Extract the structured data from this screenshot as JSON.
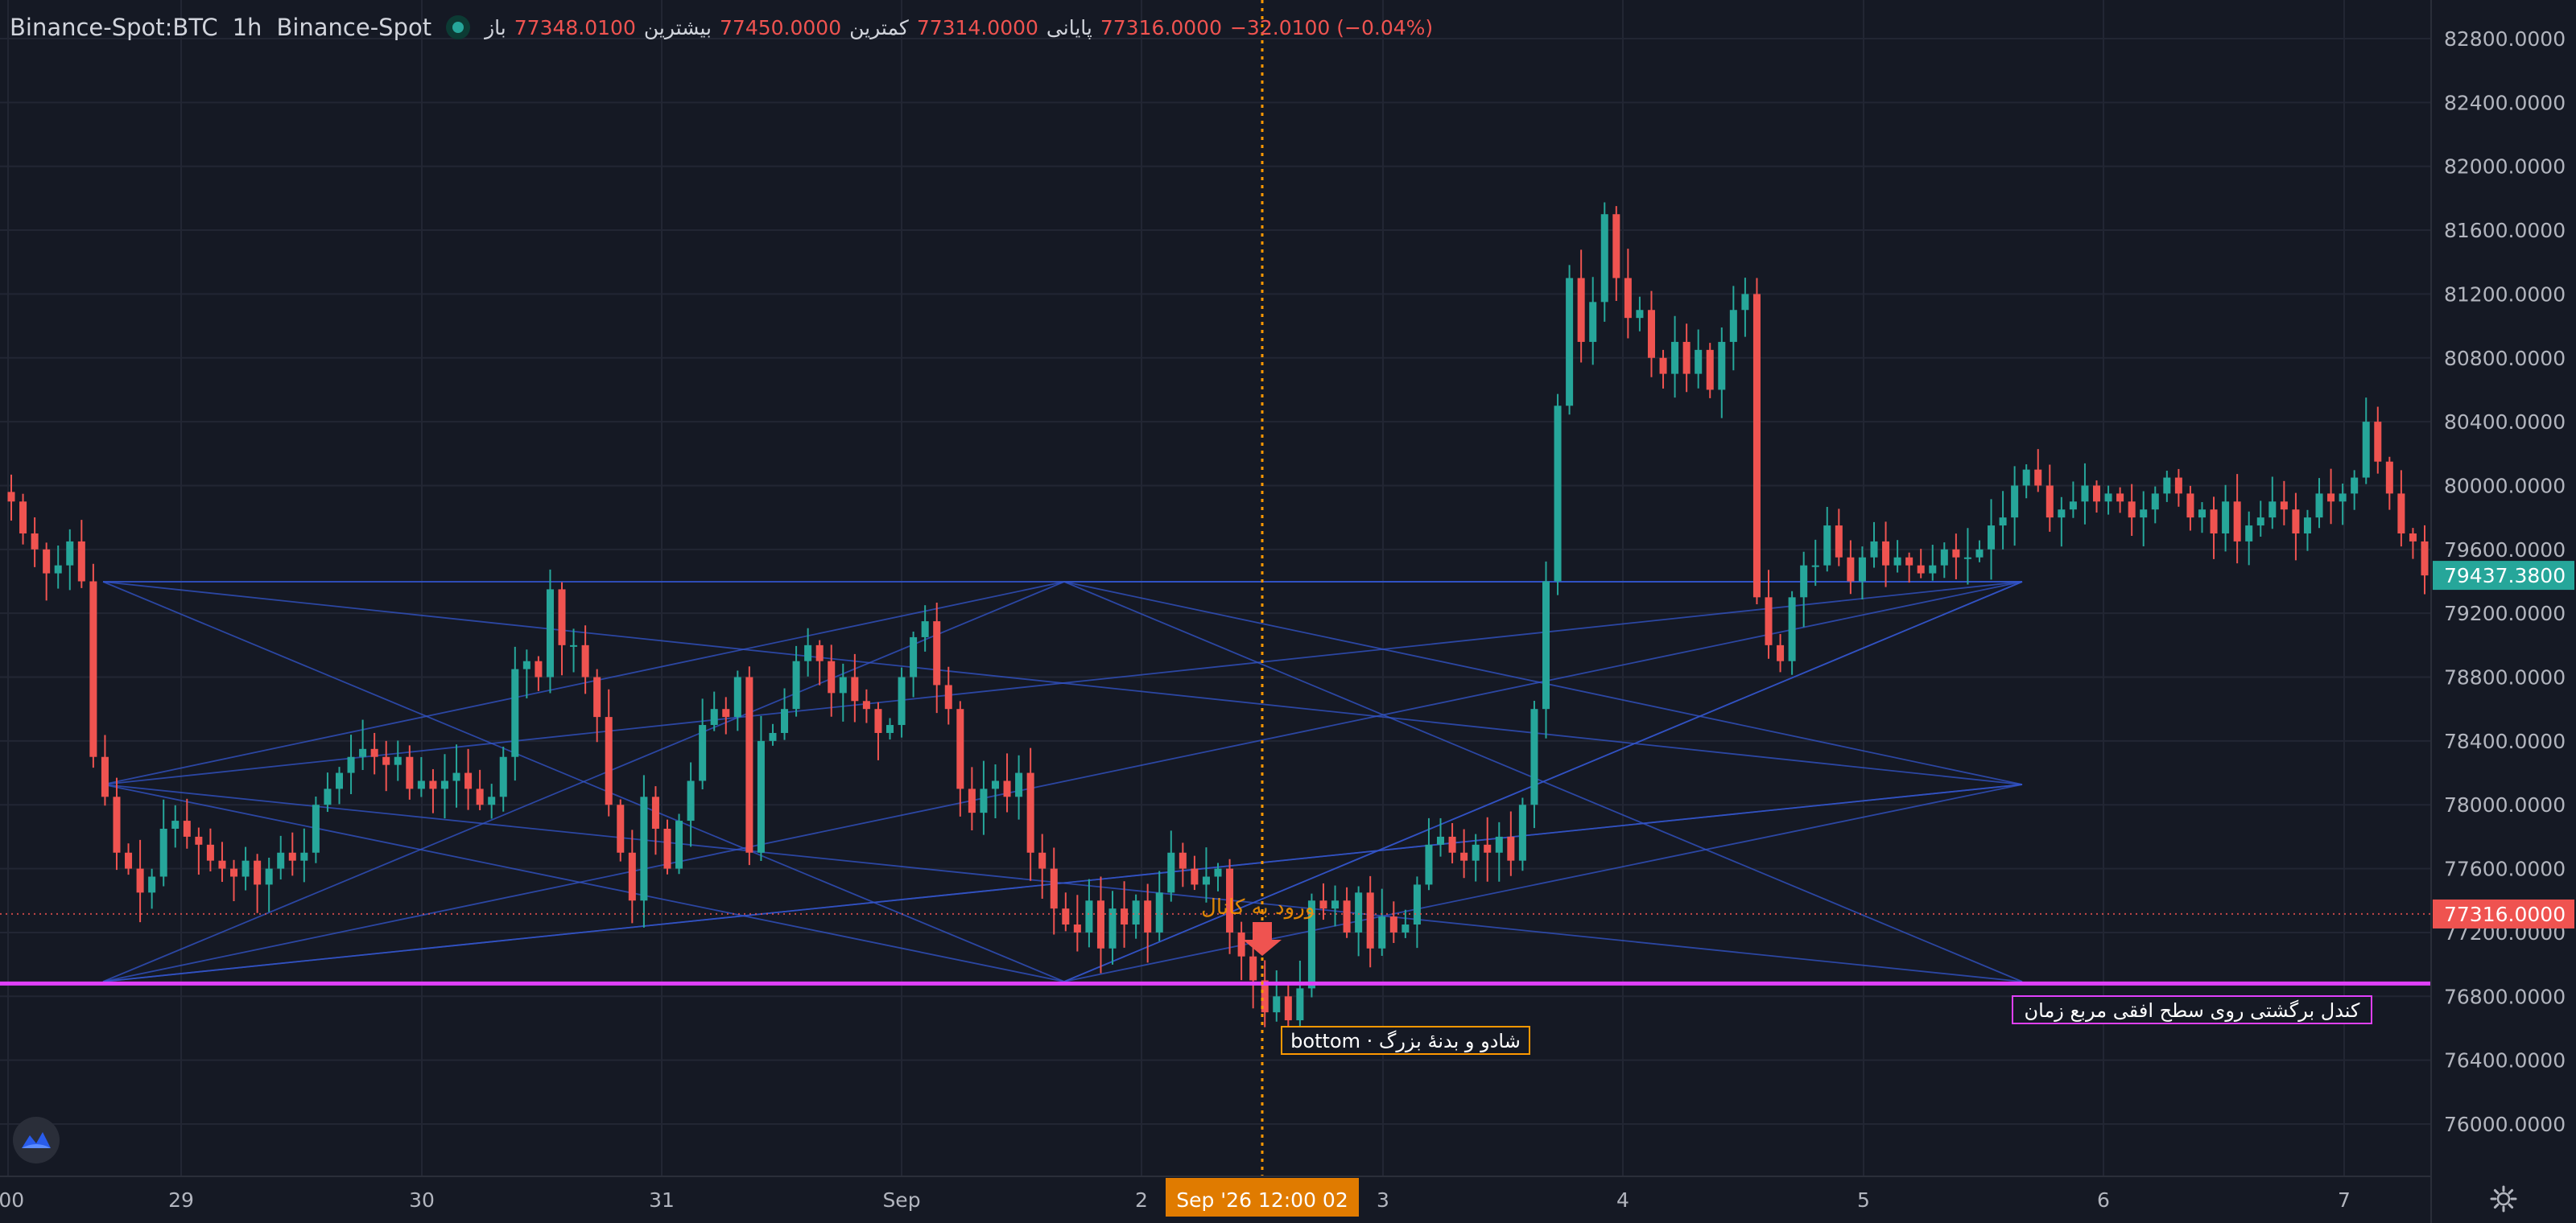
{
  "header": {
    "symbol": "Binance-Spot:BTC",
    "interval": "1h",
    "exchange": "Binance-Spot",
    "status_icon": "market-open-dot-icon",
    "open_label": "باز",
    "open_value": "77348.0100",
    "high_label": "بیشترین",
    "high_value": "77450.0000",
    "low_label": "کمترین",
    "low_value": "77314.0000",
    "close_label": "پایانی",
    "close_value": "77316.0000",
    "change_value": "−32.0100 (−0.04%)"
  },
  "colors": {
    "background": "#151924",
    "up": "#26a69a",
    "down": "#ef5350",
    "grid": "#222633",
    "pattern_lines": "#3355cc",
    "support_line": "#e040fb",
    "crosshair": "#ff9800"
  },
  "price_axis": {
    "ticks": [
      "82800.0000",
      "82400.0000",
      "82000.0000",
      "81600.0000",
      "81200.0000",
      "80800.0000",
      "80400.0000",
      "80000.0000",
      "79600.0000",
      "79200.0000",
      "78800.0000",
      "78400.0000",
      "78000.0000",
      "77600.0000",
      "77200.0000",
      "76800.0000",
      "76400.0000",
      "76000.0000"
    ],
    "last_price_label": "79437.3800",
    "crosshair_price_label": "77316.0000"
  },
  "time_axis": {
    "ticks": [
      ":00",
      "29",
      "30",
      "31",
      "Sep",
      "2",
      "3",
      "4",
      "5",
      "6",
      "7"
    ],
    "crosshair_time_label": "Sep '26   12:00 02"
  },
  "annotations": {
    "support_label": "کندل برگشتی روی سطح افقی مربع زمان",
    "bottom_label": "bottom · شادو و بدنهٔ بزرگ",
    "signal_label": "ورود به کانال"
  },
  "chart_data": {
    "type": "candlestick",
    "ylim": [
      75600,
      83000
    ],
    "support_level": 76880,
    "crosshair_price": 77316,
    "last_price": 79437.38,
    "series": [
      {
        "name": "BTC",
        "values": [
          79900,
          79700,
          79600,
          79450,
          79500,
          79650,
          79400,
          78300,
          78050,
          77700,
          77600,
          77450,
          77550,
          77850,
          77900,
          77800,
          77750,
          77650,
          77600,
          77550,
          77650,
          77500,
          77600,
          77700,
          77650,
          77700,
          78000,
          78100,
          78200,
          78300,
          78350,
          78300,
          78250,
          78300,
          78100,
          78150,
          78100,
          78150,
          78200,
          78100,
          78000,
          78050,
          78300,
          78850,
          78900,
          78800,
          79350,
          79000,
          79000,
          78800,
          78550,
          78000,
          77700,
          77400,
          78050,
          77850,
          77600,
          77900,
          78150,
          78500,
          78600,
          78550,
          78800,
          77700,
          78400,
          78450,
          78600,
          78900,
          79000,
          78900,
          78700,
          78800,
          78650,
          78600,
          78450,
          78500,
          78800,
          79050,
          79150,
          78750,
          78600,
          78100,
          77950,
          78100,
          78150,
          78050,
          78200,
          77700,
          77600,
          77350,
          77250,
          77200,
          77400,
          77100,
          77350,
          77250,
          77400,
          77200,
          77450,
          77700,
          77600,
          77500,
          77550,
          77600,
          77200,
          77050,
          76900,
          76700,
          76800,
          76650,
          76850,
          77400,
          77350,
          77400,
          77200,
          77450,
          77100,
          77300,
          77200,
          77250,
          77500,
          77750,
          77800,
          77700,
          77650,
          77750,
          77700,
          77800,
          77650,
          78000,
          78600,
          79400,
          80500,
          81300,
          80900,
          81150,
          81700,
          81300,
          81050,
          81100,
          80800,
          80700,
          80900,
          80700,
          80850,
          80600,
          80900,
          81100,
          81200,
          79300,
          79000,
          78900,
          79300,
          79500,
          79500,
          79750,
          79550,
          79400,
          79550,
          79650,
          79500,
          79550,
          79500,
          79450,
          79500,
          79600,
          79550,
          79550,
          79600,
          79750,
          79800,
          80000,
          80100,
          80000,
          79800,
          79850,
          79900,
          80000,
          79900,
          79950,
          79900,
          79800,
          79850,
          79950,
          80050,
          79950,
          79800,
          79850,
          79700,
          79900,
          79650,
          79750,
          79800,
          79900,
          79850,
          79700,
          79800,
          79950,
          79900,
          79950,
          80050,
          80400,
          80150,
          79950,
          79700,
          79650,
          79437
        ]
      }
    ]
  }
}
